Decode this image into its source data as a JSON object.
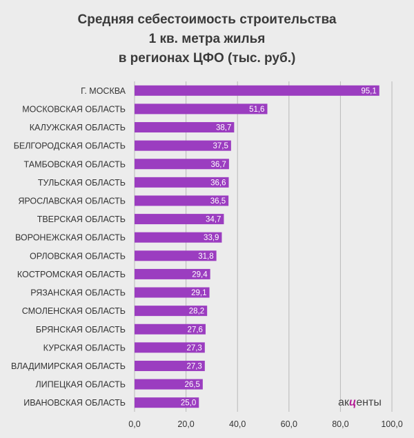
{
  "chart_data": {
    "type": "bar",
    "orientation": "horizontal",
    "title_lines": [
      "Средняя себестоимость строительства",
      "1 кв. метра жилья",
      "в регионах ЦФО (тыс. руб.)"
    ],
    "categories": [
      "Г. МОСКВА",
      "МОСКОВСКАЯ ОБЛАСТЬ",
      "КАЛУЖСКАЯ ОБЛАСТЬ",
      "БЕЛГОРОДСКАЯ ОБЛАСТЬ",
      "ТАМБОВСКАЯ ОБЛАСТЬ",
      "ТУЛЬСКАЯ ОБЛАСТЬ",
      "ЯРОСЛАВСКАЯ ОБЛАСТЬ",
      "ТВЕРСКАЯ ОБЛАСТЬ",
      "ВОРОНЕЖСКАЯ ОБЛАСТЬ",
      "ОРЛОВСКАЯ ОБЛАСТЬ",
      "КОСТРОМСКАЯ ОБЛАСТЬ",
      "РЯЗАНСКАЯ ОБЛАСТЬ",
      "СМОЛЕНСКАЯ ОБЛАСТЬ",
      "БРЯНСКАЯ ОБЛАСТЬ",
      "КУРСКАЯ ОБЛАСТЬ",
      "ВЛАДИМИРСКАЯ ОБЛАСТЬ",
      "ЛИПЕЦКАЯ ОБЛАСТЬ",
      "ИВАНОВСКАЯ ОБЛАСТЬ"
    ],
    "values": [
      95.1,
      51.6,
      38.7,
      37.5,
      36.7,
      36.6,
      36.5,
      34.7,
      33.9,
      31.8,
      29.4,
      29.1,
      28.2,
      27.6,
      27.3,
      27.3,
      26.5,
      25.0
    ],
    "value_labels": [
      "95,1",
      "51,6",
      "38,7",
      "37,5",
      "36,7",
      "36,6",
      "36,5",
      "34,7",
      "33,9",
      "31,8",
      "29,4",
      "29,1",
      "28,2",
      "27,6",
      "27,3",
      "27,3",
      "26,5",
      "25,0"
    ],
    "xlim": [
      0,
      100
    ],
    "x_ticks": [
      0,
      20,
      40,
      60,
      80,
      100
    ],
    "x_tick_labels": [
      "0,0",
      "20,0",
      "40,0",
      "60,0",
      "80,0",
      "100,0"
    ],
    "grid": true,
    "bar_color": "#9b3dc0",
    "xlabel": "",
    "ylabel": ""
  },
  "branding": {
    "prefix": "ак",
    "mark": "ц",
    "suffix": "енты",
    "mark_color": "#b41e96"
  }
}
